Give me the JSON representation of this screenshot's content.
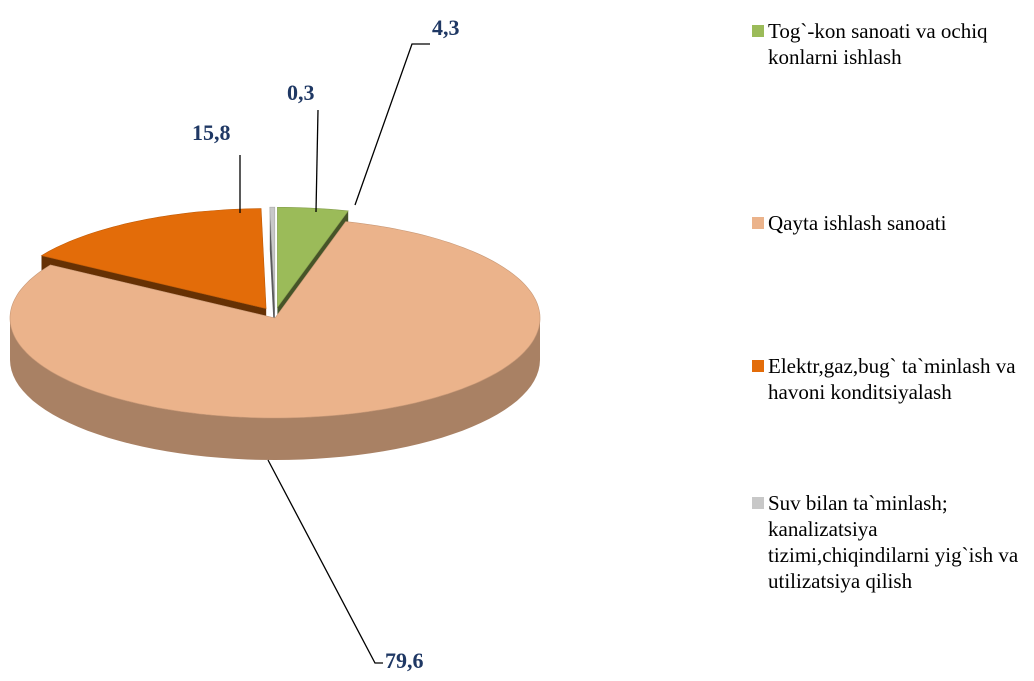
{
  "chart_data": {
    "type": "pie3d",
    "categories": [
      "Tog`-kon sanoati va ochiq konlarni ishlash",
      "Qayta ishlash sanoati",
      "Elektr,gaz,bug` ta`minlash va havoni konditsiyalash",
      "Suv bilan ta`minlash; kanalizatsiya tizimi,chiqindilarni yig`ish va utilizatsiya qilish"
    ],
    "values": [
      4.3,
      79.6,
      15.8,
      0.3
    ],
    "value_labels": [
      "4,3",
      "79,6",
      "15,8",
      "0,3"
    ],
    "colors": [
      "#9bbb59",
      "#ebb38b",
      "#e36c09",
      "#c8c8c8"
    ],
    "legend": "right"
  }
}
